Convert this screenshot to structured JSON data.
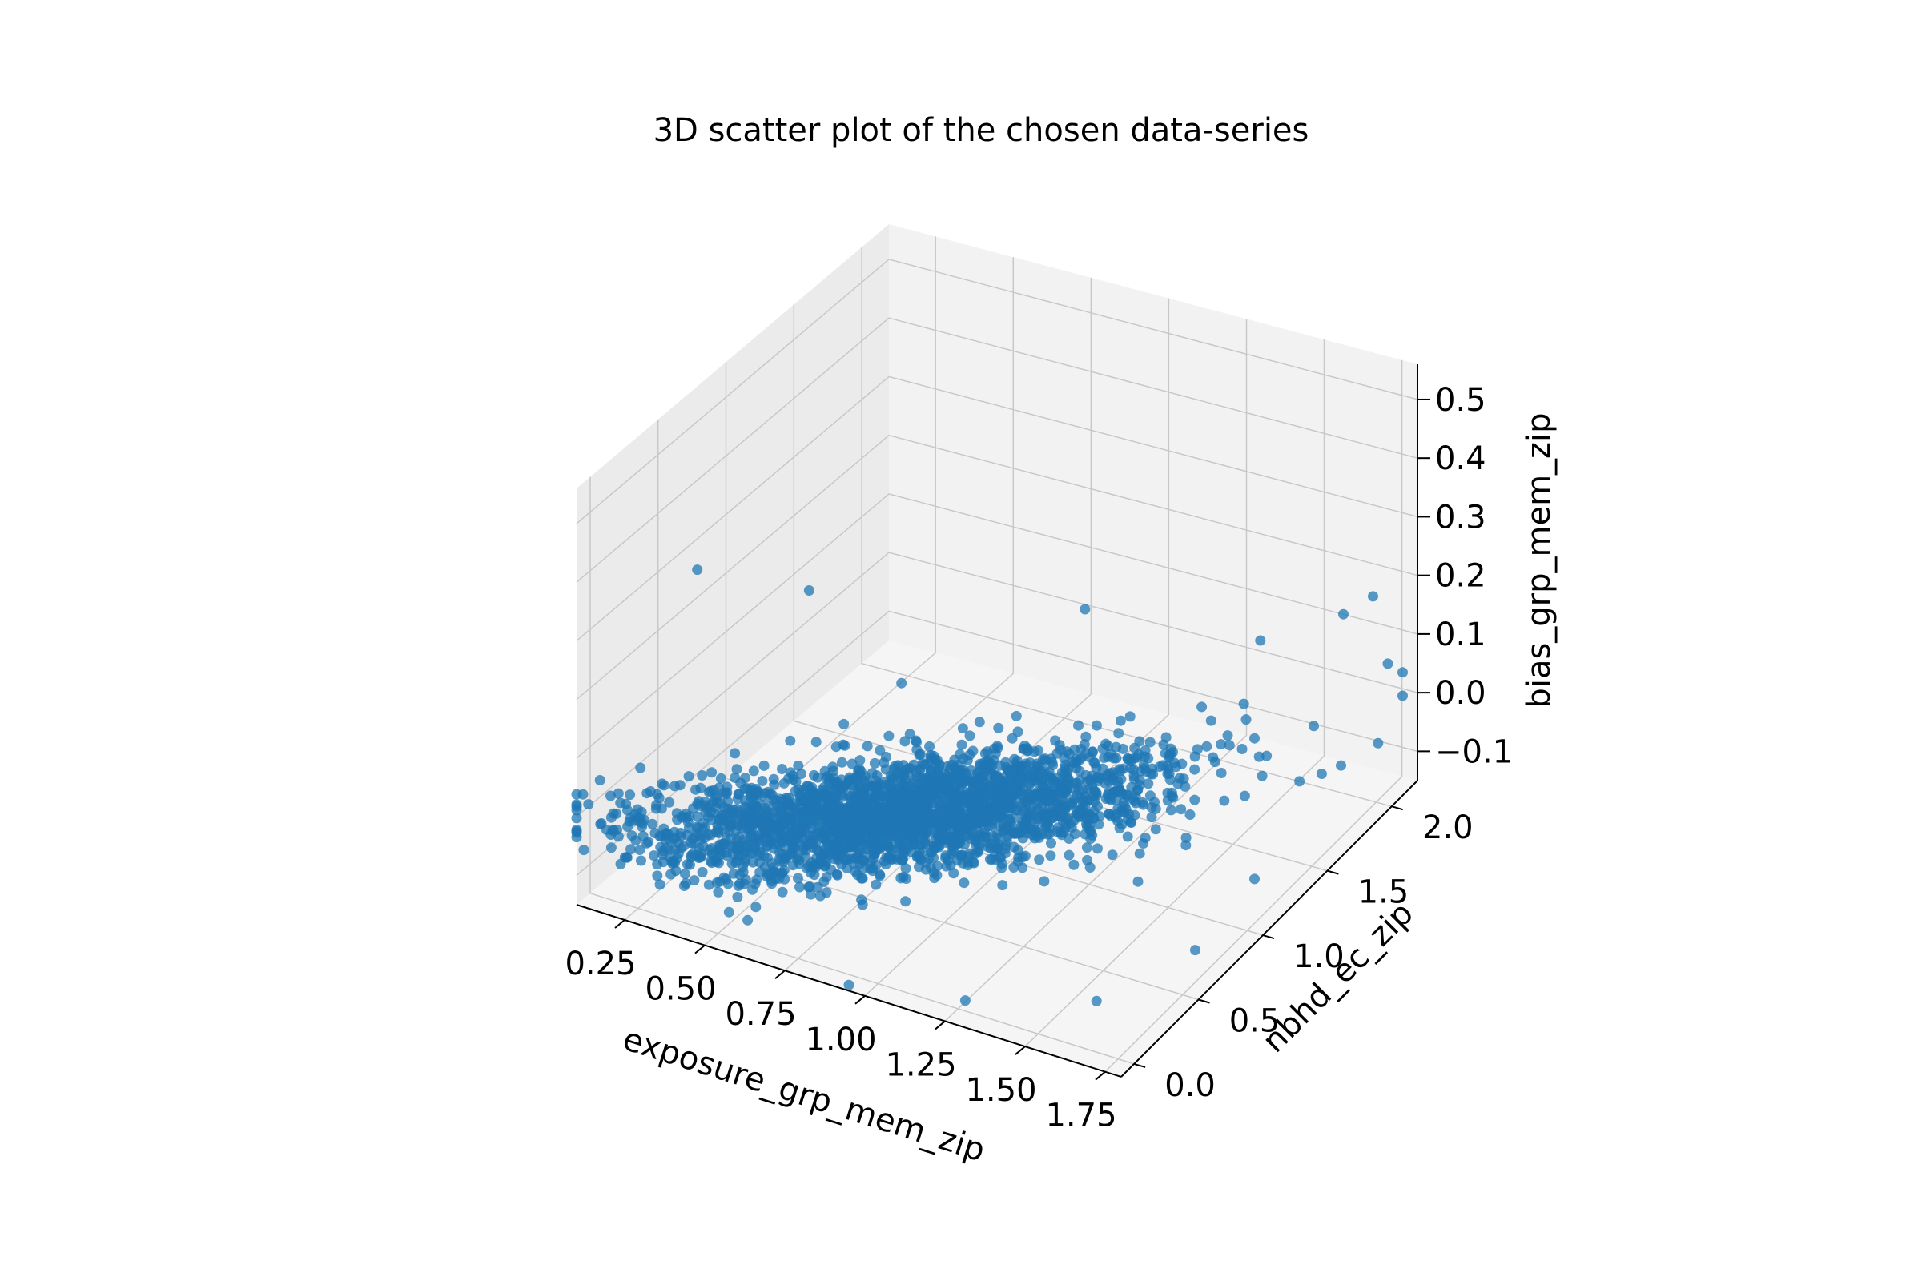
{
  "chart_data": {
    "type": "scatter",
    "title": "3D scatter plot of the chosen data-series",
    "xlabel": "exposure_grp_mem_zip",
    "ylabel": "nbhd_ec_zip",
    "zlabel": "bias_grp_mem_zip",
    "x_ticks": [
      "0.25",
      "0.50",
      "0.75",
      "1.00",
      "1.25",
      "1.50",
      "1.75"
    ],
    "y_ticks": [
      "0.0",
      "0.5",
      "1.0",
      "1.5",
      "2.0"
    ],
    "z_ticks": [
      "−0.1",
      "0.0",
      "0.1",
      "0.2",
      "0.3",
      "0.4",
      "0.5"
    ],
    "xlim": [
      0.1,
      1.8
    ],
    "ylim": [
      -0.1,
      2.2
    ],
    "zlim": [
      -0.15,
      0.56
    ],
    "grid": true,
    "colors": {
      "points": "#1f77b4",
      "pane_left": "#ebebeb",
      "pane_back": "#f2f2f2",
      "pane_floor": "#f5f5f5",
      "grid": "#c8c8c8"
    },
    "series": [
      {
        "x_center": 0.85,
        "x_spread": 0.3,
        "y_center": 0.55,
        "y_spread": 0.35,
        "z_center": 0.0,
        "z_spread": 0.03,
        "points": [
          [
            0.05,
            0.6,
            0.3
          ],
          [
            0.2,
            0.8,
            0.26
          ],
          [
            0.6,
            1.2,
            0.24
          ],
          [
            0.9,
            1.3,
            0.24
          ],
          [
            1.1,
            1.5,
            0.26
          ],
          [
            1.3,
            1.7,
            0.24
          ],
          [
            1.5,
            1.8,
            0.1
          ],
          [
            1.6,
            1.9,
            0.06
          ],
          [
            1.7,
            1.9,
            0.02
          ],
          [
            0.1,
            0.2,
            0.04
          ],
          [
            0.3,
            0.05,
            -0.1
          ],
          [
            0.5,
            0.0,
            -0.14
          ],
          [
            0.7,
            0.05,
            -0.12
          ],
          [
            0.9,
            0.2,
            -0.1
          ],
          [
            1.2,
            0.5,
            -0.06
          ],
          [
            1.5,
            0.9,
            -0.04
          ],
          [
            0.8,
            0.4,
            0.16
          ],
          [
            0.4,
            0.7,
            0.18
          ],
          [
            1.0,
            0.9,
            0.2
          ],
          [
            1.4,
            1.3,
            0.12
          ]
        ]
      }
    ]
  }
}
